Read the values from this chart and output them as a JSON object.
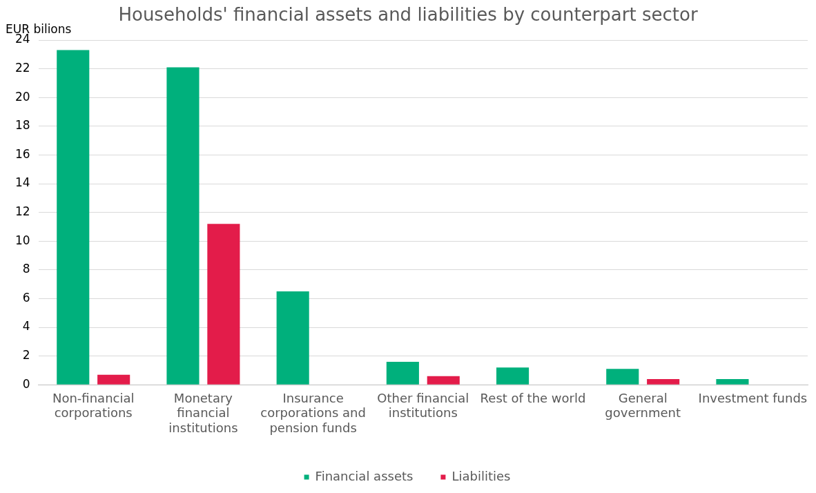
{
  "chart_data": {
    "type": "bar",
    "title": "Households' financial assets and liabilities by counterpart sector",
    "ylabel": "EUR bilions",
    "categories": [
      "Non-financial corporations",
      "Monetary financial institutions",
      "Insurance corporations and pension funds",
      "Other financial institutions",
      "Rest of the world",
      "General government",
      "Investment funds"
    ],
    "series": [
      {
        "name": "Financial assets",
        "color": "#00b07c",
        "values": [
          23.3,
          22.1,
          6.5,
          1.6,
          1.2,
          1.1,
          0.4
        ]
      },
      {
        "name": "Liabilities",
        "color": "#e31c4a",
        "values": [
          0.7,
          11.2,
          null,
          0.6,
          null,
          0.4,
          null
        ]
      }
    ],
    "ylim": [
      0,
      24
    ],
    "yticks": [
      0,
      2,
      4,
      6,
      8,
      10,
      12,
      14,
      16,
      18,
      20,
      22,
      24
    ],
    "grid": "y",
    "legend": "bottom"
  }
}
